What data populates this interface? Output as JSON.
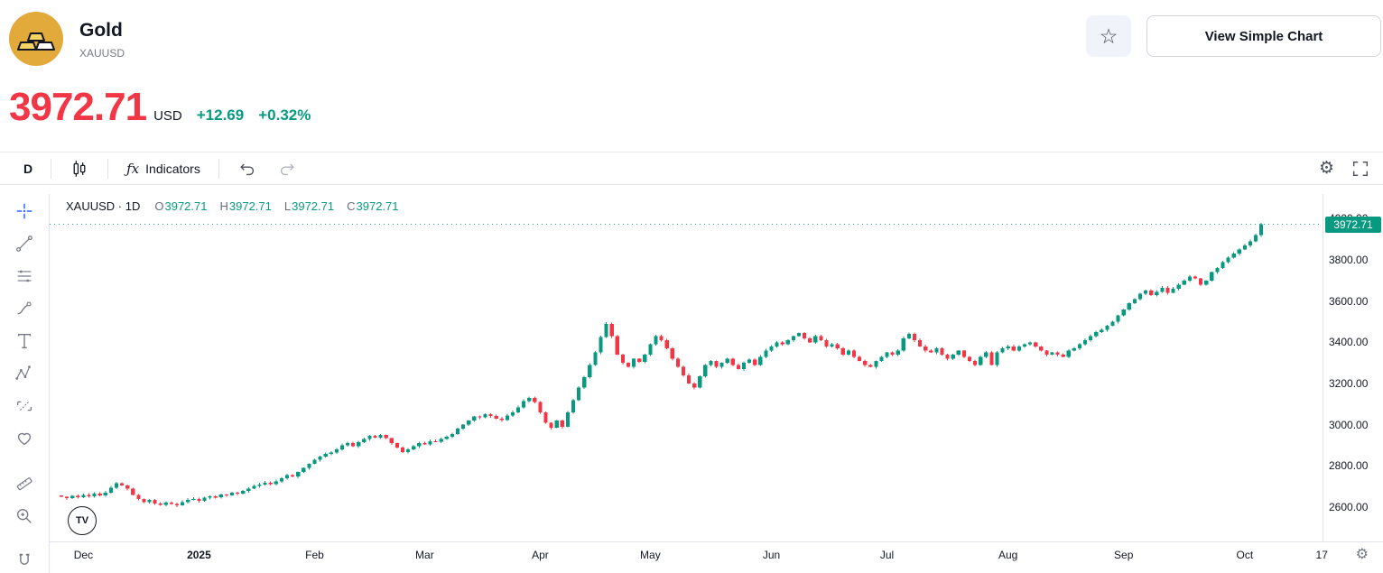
{
  "header": {
    "title": "Gold",
    "symbol": "XAUUSD",
    "view_simple_chart_label": "View Simple Chart"
  },
  "quote": {
    "price": "3972.71",
    "currency": "USD",
    "change": "+12.69",
    "change_percent": "+0.32%"
  },
  "icons": {
    "star": "☆",
    "gear": "⚙"
  },
  "chart_toolbar": {
    "interval": "D",
    "fx_label": "ƒx",
    "indicators_label": "Indicators"
  },
  "drawing_toolbar": {
    "tools": [
      {
        "name": "crosshair",
        "active": true
      },
      {
        "name": "trend-line"
      },
      {
        "name": "fib-retracement"
      },
      {
        "name": "brush"
      },
      {
        "name": "text"
      },
      {
        "name": "pattern"
      },
      {
        "name": "forecast"
      },
      {
        "name": "emoji"
      },
      {
        "name": "measure",
        "group_break": true
      },
      {
        "name": "zoom"
      },
      {
        "name": "magnet",
        "group_break": true
      }
    ]
  },
  "legend": {
    "title": "XAUUSD · 1D",
    "items": [
      {
        "label": "O",
        "value": "3972.71"
      },
      {
        "label": "H",
        "value": "3972.71"
      },
      {
        "label": "L",
        "value": "3972.71"
      },
      {
        "label": "C",
        "value": "3972.71"
      }
    ]
  },
  "branding": {
    "tv_logo_text": "TV"
  },
  "price_scale": {
    "ticks": [
      4000,
      3800,
      3600,
      3400,
      3200,
      3000,
      2800,
      2600
    ],
    "last_price_label": "3972.71"
  },
  "time_scale": {
    "labels": [
      {
        "text": "Dec",
        "i": 4
      },
      {
        "text": "2025",
        "i": 25,
        "bold": true
      },
      {
        "text": "Feb",
        "i": 46
      },
      {
        "text": "Mar",
        "i": 66
      },
      {
        "text": "Apr",
        "i": 87
      },
      {
        "text": "May",
        "i": 107
      },
      {
        "text": "Jun",
        "i": 129
      },
      {
        "text": "Jul",
        "i": 150
      },
      {
        "text": "Aug",
        "i": 172
      },
      {
        "text": "Sep",
        "i": 193
      },
      {
        "text": "Oct",
        "i": 215
      },
      {
        "text": "17",
        "i": 229
      }
    ]
  },
  "chart_data": {
    "type": "candlestick",
    "title": "Gold (XAUUSD) · 1D",
    "ylabel": "USD",
    "y_ticks": [
      2600,
      2800,
      3000,
      3200,
      3400,
      3600,
      3800,
      4000
    ],
    "y_visible_range": [
      2435,
      4120
    ],
    "x_labels": [
      "Dec",
      "2025",
      "Feb",
      "Mar",
      "Apr",
      "May",
      "Jun",
      "Jul",
      "Aug",
      "Sep",
      "Oct",
      "17"
    ],
    "last_price": 3972.71,
    "up_color": "#089981",
    "down_color": "#f23645",
    "closes": [
      2650,
      2643,
      2655,
      2648,
      2660,
      2652,
      2665,
      2658,
      2670,
      2695,
      2715,
      2705,
      2690,
      2660,
      2640,
      2625,
      2635,
      2618,
      2612,
      2622,
      2615,
      2608,
      2625,
      2635,
      2640,
      2630,
      2645,
      2652,
      2648,
      2662,
      2658,
      2670,
      2665,
      2678,
      2690,
      2702,
      2710,
      2718,
      2712,
      2725,
      2740,
      2755,
      2748,
      2770,
      2790,
      2810,
      2830,
      2845,
      2858,
      2865,
      2880,
      2900,
      2910,
      2895,
      2915,
      2930,
      2945,
      2938,
      2950,
      2935,
      2910,
      2890,
      2868,
      2880,
      2895,
      2910,
      2905,
      2920,
      2918,
      2930,
      2942,
      2955,
      2980,
      3000,
      3020,
      3040,
      3035,
      3050,
      3042,
      3030,
      3022,
      3045,
      3060,
      3085,
      3115,
      3130,
      3110,
      3060,
      3010,
      2985,
      3020,
      2990,
      3060,
      3120,
      3180,
      3230,
      3290,
      3350,
      3425,
      3490,
      3430,
      3340,
      3300,
      3280,
      3320,
      3305,
      3340,
      3390,
      3430,
      3410,
      3370,
      3320,
      3280,
      3240,
      3200,
      3180,
      3235,
      3290,
      3310,
      3280,
      3300,
      3320,
      3290,
      3270,
      3300,
      3315,
      3290,
      3330,
      3360,
      3380,
      3400,
      3390,
      3410,
      3430,
      3445,
      3420,
      3400,
      3430,
      3410,
      3380,
      3390,
      3370,
      3340,
      3360,
      3330,
      3310,
      3290,
      3280,
      3310,
      3330,
      3350,
      3340,
      3360,
      3420,
      3440,
      3410,
      3380,
      3360,
      3350,
      3370,
      3340,
      3320,
      3340,
      3360,
      3330,
      3310,
      3290,
      3330,
      3350,
      3290,
      3350,
      3370,
      3380,
      3360,
      3380,
      3390,
      3400,
      3380,
      3360,
      3340,
      3350,
      3340,
      3330,
      3360,
      3370,
      3390,
      3410,
      3430,
      3450,
      3460,
      3480,
      3500,
      3530,
      3560,
      3590,
      3610,
      3635,
      3650,
      3630,
      3645,
      3665,
      3640,
      3660,
      3680,
      3700,
      3720,
      3710,
      3680,
      3700,
      3740,
      3760,
      3790,
      3810,
      3830,
      3850,
      3870,
      3890,
      3920,
      3972.71
    ]
  },
  "colors": {
    "price_red": "#f23645",
    "change_green": "#089981",
    "accent_blue": "#2962ff",
    "border": "#e0e3eb",
    "text": "#131722",
    "muted": "#787b86",
    "gold": "#e2a93b"
  }
}
